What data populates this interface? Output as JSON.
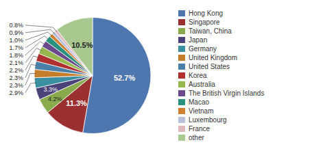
{
  "chart_data": {
    "type": "pie",
    "categories": [
      "Hong Kong",
      "Singapore",
      "Taiwan, China",
      "Japan",
      "Germany",
      "United Kingdom",
      "United States",
      "Korea",
      "Australia",
      "The British Virgin Islands",
      "Macao",
      "Vietnam",
      "Luxembourg",
      "France",
      "other"
    ],
    "values": [
      52.7,
      11.3,
      4.2,
      3.3,
      2.9,
      2.3,
      2.3,
      2.2,
      2.1,
      1.8,
      1.7,
      1.0,
      0.9,
      0.8,
      10.5
    ],
    "value_labels": [
      "52.7%",
      "11.3%",
      "4.2%",
      "3.3%",
      "2.9%",
      "2.3%",
      "2.3%",
      "2.2%",
      "2.1%",
      "1.8%",
      "1.7%",
      "1.0%",
      "0.9%",
      "0.8%",
      "10.5%"
    ],
    "colors": [
      "#4e77b0",
      "#9b3030",
      "#8aaa4e",
      "#4a4278",
      "#3a8fa0",
      "#c47d2a",
      "#4a7fa8",
      "#b03030",
      "#96b84e",
      "#6a4a8a",
      "#2a9080",
      "#d08030",
      "#b8c0dc",
      "#e0b8c0",
      "#a8c890"
    ],
    "data_labels": true,
    "legend": "right"
  }
}
